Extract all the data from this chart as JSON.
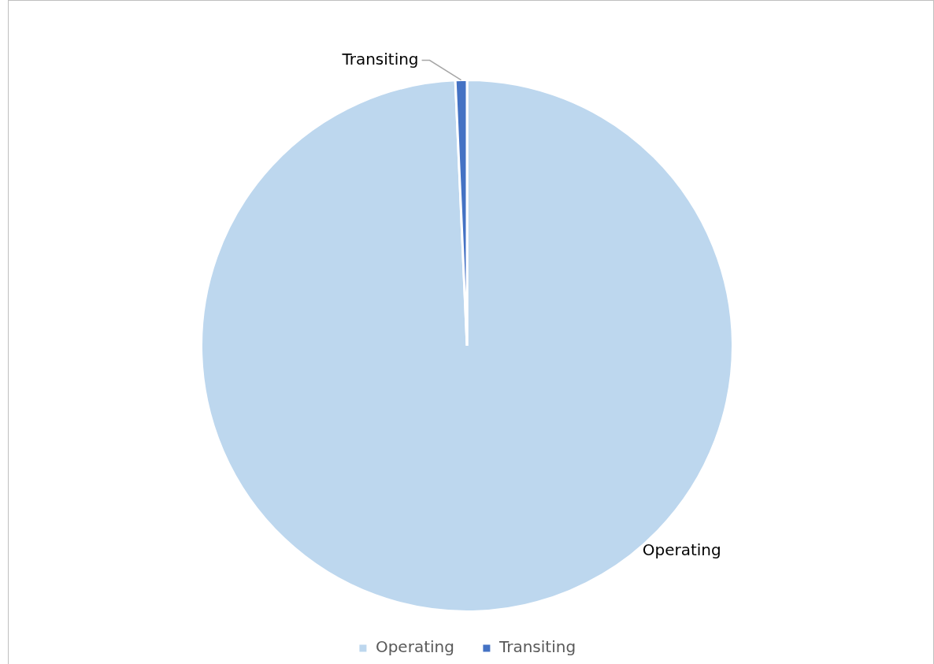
{
  "chart_data": {
    "type": "pie",
    "categories": [
      "Operating",
      "Transiting"
    ],
    "values": [
      99.3,
      0.7
    ],
    "colors": [
      "#bdd7ee",
      "#4472c4"
    ],
    "legend": "bottom"
  }
}
